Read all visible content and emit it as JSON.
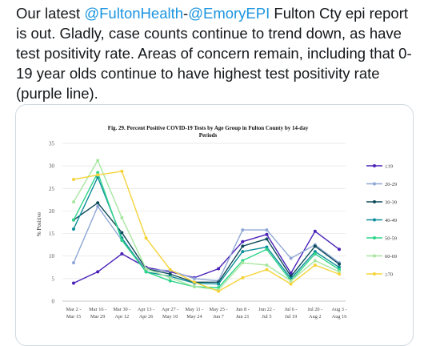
{
  "tweet": {
    "text_prefix": "Our latest ",
    "mention1": "@FultonHealth",
    "dash": "-",
    "mention2": "@EmoryEPI",
    "text_suffix": " Fulton Cty epi report is out. Gladly, case counts continue to trend down, as have test positivity rate. Areas of concern remain, including that 0-19 year olds continue to have highest test positivity rate (purple line)."
  },
  "colors": {
    "mention": "#1b95e0"
  },
  "chart_data": {
    "type": "line",
    "title": "Fig. 29. Percent Positive COVID-19 Tests by Age Group in Fulton County by 14-day Periods",
    "ylabel": "% Positive",
    "xlabel": "",
    "ylim": [
      0,
      35
    ],
    "yticks": [
      0,
      5,
      10,
      15,
      20,
      25,
      30,
      35
    ],
    "grid": true,
    "legend_position": "right",
    "categories": [
      [
        "Mar 2 -",
        "Mar 15"
      ],
      [
        "Mar 16 -",
        "Mar 29"
      ],
      [
        "Mar 30 -",
        "Apr 12"
      ],
      [
        "Apr 13 -",
        "Apr 26"
      ],
      [
        "Apr 27 -",
        "May 10"
      ],
      [
        "May 11 -",
        "May 24"
      ],
      [
        "May 25 -",
        "Jun 7"
      ],
      [
        "Jun 8 -",
        "Jun 21"
      ],
      [
        "Jun 22 -",
        "Jul 5"
      ],
      [
        "Jul 6 -",
        "Jul 19"
      ],
      [
        "Jul 20 -",
        "Aug 2"
      ],
      [
        "Aug 3 -",
        "Aug 16"
      ]
    ],
    "series": [
      {
        "name": "≤19",
        "color": "#4b22b8",
        "values": [
          4,
          6.5,
          10.5,
          7.5,
          6.5,
          5.2,
          7.2,
          13.2,
          14.8,
          6.2,
          15.5,
          11.5
        ]
      },
      {
        "name": "20-29",
        "color": "#8fa7d6",
        "values": [
          8.5,
          21,
          13.5,
          7,
          6.8,
          5,
          4.5,
          15.8,
          15.8,
          9.5,
          12.5,
          8.5
        ]
      },
      {
        "name": "30-39",
        "color": "#0e4b5a",
        "values": [
          18,
          21.8,
          15.2,
          7.2,
          6,
          4.2,
          4.2,
          12.2,
          13.8,
          5.5,
          12.2,
          8.2
        ]
      },
      {
        "name": "40-49",
        "color": "#0d8e9a",
        "values": [
          16,
          27.5,
          14,
          6.5,
          5.5,
          4,
          3.8,
          11,
          12,
          5,
          11,
          7.5
        ]
      },
      {
        "name": "50-59",
        "color": "#2fd58a",
        "values": [
          18,
          28.5,
          13.5,
          6.5,
          4.5,
          3.2,
          3,
          9,
          11.5,
          4.5,
          10.5,
          7
        ]
      },
      {
        "name": "60-69",
        "color": "#a8e6a0",
        "values": [
          22,
          31.2,
          18.5,
          7.2,
          5.2,
          3.2,
          2.5,
          8.5,
          8,
          4.5,
          9,
          6.5
        ]
      },
      {
        "name": "≥70",
        "color": "#f5d33a",
        "values": [
          27,
          28,
          28.8,
          14,
          7,
          4.2,
          2.2,
          5.2,
          7,
          3.8,
          8,
          6
        ]
      }
    ]
  }
}
